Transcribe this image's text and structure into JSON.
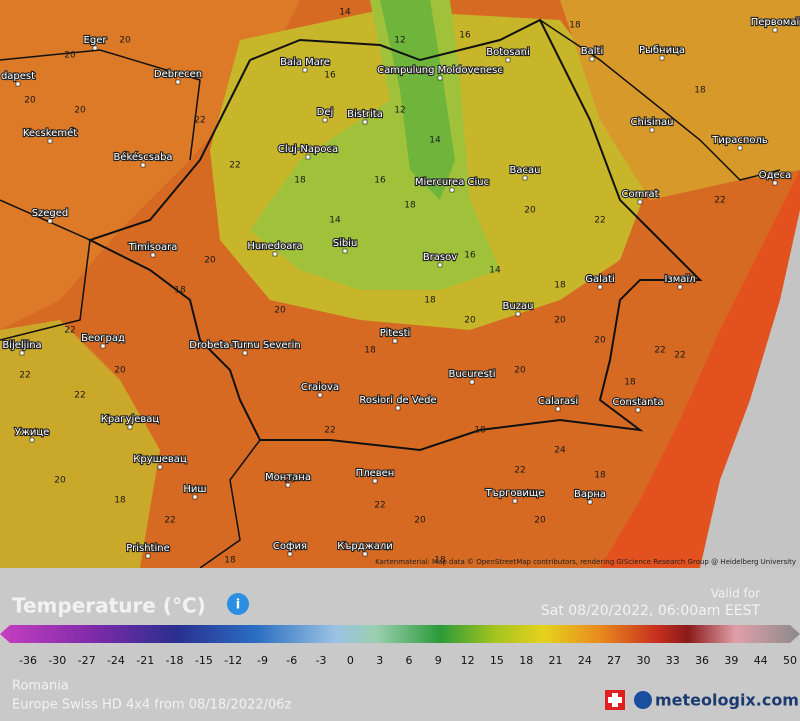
{
  "map": {
    "attribution": "Kartenmaterial: Map data © OpenStreetMap contributors, rendering GIScience Research Group @ Heidelberg University",
    "cities": [
      "Eger",
      "dapest",
      "Debrecen",
      "Baia Mare",
      "Campulung Moldovenesc",
      "Botosani",
      "Balti",
      "Рыбница",
      "Первомаї",
      "Kecskemét",
      "Békéscsaba",
      "Dej",
      "Bistrita",
      "Cluj-Napoca",
      "Chisinau",
      "Тирасполь",
      "Одеса",
      "Szeged",
      "Miercurea Ciuc",
      "Bacau",
      "Comrat",
      "Timisoara",
      "Hunedoara",
      "Sibiu",
      "Brasov",
      "Galati",
      "Ізмаїл",
      "Београд",
      "Bijeljina",
      "Drobeta-Turnu Severin",
      "Pitesti",
      "Buzau",
      "Bucuresti",
      "Craiova",
      "Rosiori de Vede",
      "Calarasi",
      "Constanta",
      "Крагујевац",
      "Ужице",
      "Крушевац",
      "Ниш",
      "Монтана",
      "Плевен",
      "Търговище",
      "Варна",
      "София",
      "Кърджали",
      "Prishtine"
    ],
    "temperatures": [
      20,
      20,
      16,
      14,
      12,
      16,
      18,
      18,
      20,
      20,
      22,
      22,
      18,
      14,
      12,
      14,
      16,
      18,
      20,
      22,
      22,
      18,
      16,
      14,
      18,
      20,
      22,
      20,
      22,
      22,
      20,
      18,
      18,
      20,
      20,
      22,
      20,
      18,
      20,
      22,
      24,
      22,
      20,
      18,
      18,
      22,
      20,
      18,
      22,
      20,
      18,
      20,
      18,
      22
    ]
  },
  "legend": {
    "title": "Temperature (°C)",
    "info_icon": "i",
    "valid_label": "Valid for",
    "valid_time": "Sat 08/20/2022, 06:00am EEST",
    "scale": [
      -36,
      -30,
      -27,
      -24,
      -21,
      -18,
      -15,
      -12,
      -9,
      -6,
      -3,
      0,
      3,
      6,
      9,
      12,
      15,
      18,
      21,
      24,
      27,
      30,
      33,
      36,
      39,
      44,
      50
    ],
    "region": "Romania",
    "model": "Europe Swiss HD 4x4 from 08/18/2022/06z",
    "brand": "meteologix.com"
  }
}
